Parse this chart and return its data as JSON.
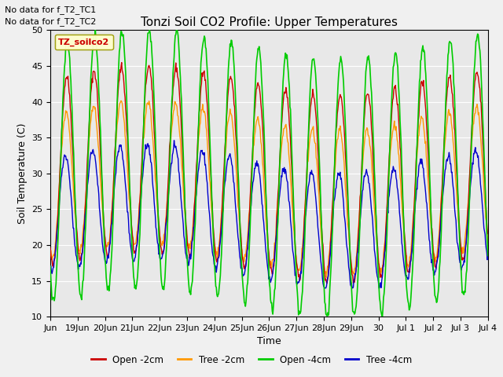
{
  "title": "Tonzi Soil CO2 Profile: Upper Temperatures",
  "ylabel": "Soil Temperature (C)",
  "xlabel": "Time",
  "annotations": [
    "No data for f_T2_TC1",
    "No data for f_T2_TC2"
  ],
  "legend_label": "TZ_soilco2",
  "legend_entries": [
    "Open -2cm",
    "Tree -2cm",
    "Open -4cm",
    "Tree -4cm"
  ],
  "line_colors": [
    "#cc0000",
    "#ff9900",
    "#00cc00",
    "#0000cc"
  ],
  "ylim": [
    10,
    50
  ],
  "background_color": "#e8e8e8",
  "fig_facecolor": "#f0f0f0",
  "tick_labels": [
    "Jun",
    "19Jun",
    "20Jun",
    "21Jun",
    "22Jun",
    "23Jun",
    "24Jun",
    "25Jun",
    "26Jun",
    "27Jun",
    "28Jun",
    "29Jun",
    "30",
    "Jul 1",
    "Jul 2",
    "Jul 3",
    "Jul 4"
  ],
  "yticks": [
    10,
    15,
    20,
    25,
    30,
    35,
    40,
    45,
    50
  ],
  "n_days": 16,
  "points_per_day": 48,
  "seed": 42
}
